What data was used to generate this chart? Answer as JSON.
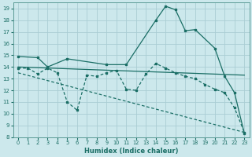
{
  "xlabel": "Humidex (Indice chaleur)",
  "bg_color": "#cce8ec",
  "grid_color": "#aacdd4",
  "line_color": "#1a6e65",
  "xlim": [
    -0.5,
    23.5
  ],
  "ylim": [
    8,
    19.5
  ],
  "yticks": [
    8,
    9,
    10,
    11,
    12,
    13,
    14,
    15,
    16,
    17,
    18,
    19
  ],
  "xticks": [
    0,
    1,
    2,
    3,
    4,
    5,
    6,
    7,
    8,
    9,
    10,
    11,
    12,
    13,
    14,
    15,
    16,
    17,
    18,
    19,
    20,
    21,
    22,
    23
  ],
  "line1_x": [
    0,
    2,
    3,
    5,
    9,
    11,
    14,
    15,
    16,
    17,
    18,
    20,
    21,
    22,
    23
  ],
  "line1_y": [
    14.9,
    14.8,
    14.0,
    14.7,
    14.2,
    14.2,
    18.0,
    19.2,
    18.9,
    17.1,
    17.2,
    15.6,
    13.2,
    11.8,
    8.3
  ],
  "line2_x": [
    0,
    1,
    2,
    3,
    4,
    5,
    6,
    7,
    8,
    9,
    10,
    11,
    12,
    13,
    14,
    15,
    16,
    17,
    18,
    19,
    20,
    21,
    22,
    23
  ],
  "line2_y": [
    13.9,
    13.9,
    13.4,
    13.9,
    13.5,
    11.0,
    10.3,
    13.3,
    13.2,
    13.5,
    13.7,
    12.1,
    12.0,
    13.4,
    14.3,
    13.9,
    13.5,
    13.2,
    13.0,
    12.5,
    12.1,
    11.8,
    10.5,
    8.4
  ],
  "line3_x": [
    0,
    23
  ],
  "line3_y": [
    14.0,
    13.3
  ],
  "line4_x": [
    0,
    23
  ],
  "line4_y": [
    13.5,
    8.4
  ],
  "lw": 0.9,
  "ms": 2.0
}
